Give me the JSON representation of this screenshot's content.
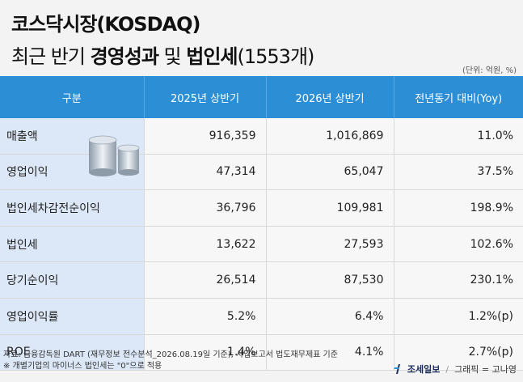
{
  "title": {
    "line1": "코스닥시장(KOSDAQ)",
    "line2_prefix": "최근 반기 ",
    "line2_bold1": "경영성과",
    "line2_mid": " 및 ",
    "line2_bold2": "법인세",
    "line2_suffix": "(1553개)"
  },
  "unit": "(단위: 억원, %)",
  "table": {
    "headers": [
      "구분",
      "2025년 상반기",
      "2026년 상반기",
      "전년동기 대비(Yoy)"
    ],
    "rows": [
      {
        "label": "매출액",
        "h1": "916,359",
        "h2": "1,016,869",
        "yoy": "11.0%"
      },
      {
        "label": "영업이익",
        "h1": "47,314",
        "h2": "65,047",
        "yoy": "37.5%"
      },
      {
        "label": "법인세차감전순이익",
        "h1": "36,796",
        "h2": "109,981",
        "yoy": "198.9%"
      },
      {
        "label": "법인세",
        "h1": "13,622",
        "h2": "27,593",
        "yoy": "102.6%"
      },
      {
        "label": "당기순이익",
        "h1": "26,514",
        "h2": "87,530",
        "yoy": "230.1%"
      },
      {
        "label": "영업이익률",
        "h1": "5.2%",
        "h2": "6.4%",
        "yoy": "1.2%(p)"
      },
      {
        "label": "ROE",
        "h1": "1.4%",
        "h2": "4.1%",
        "yoy": "2.7%(p)"
      }
    ]
  },
  "source_line1": "자료: 금융감독원 DART (재무정보 전수분석_2026.08.19일 기준), 사업보고서 법도재무제표 기준",
  "source_line2": "※ 개별기업의 마이너스 법인세는 \"0\"으로 적용",
  "credit": {
    "brand": "조세일보",
    "separator": "/",
    "graphic": "그래픽 = 고나영"
  },
  "colors": {
    "header_bg": "#2c8fd6",
    "label_bg": "#dce8f7",
    "brand": "#1a2d5a"
  }
}
